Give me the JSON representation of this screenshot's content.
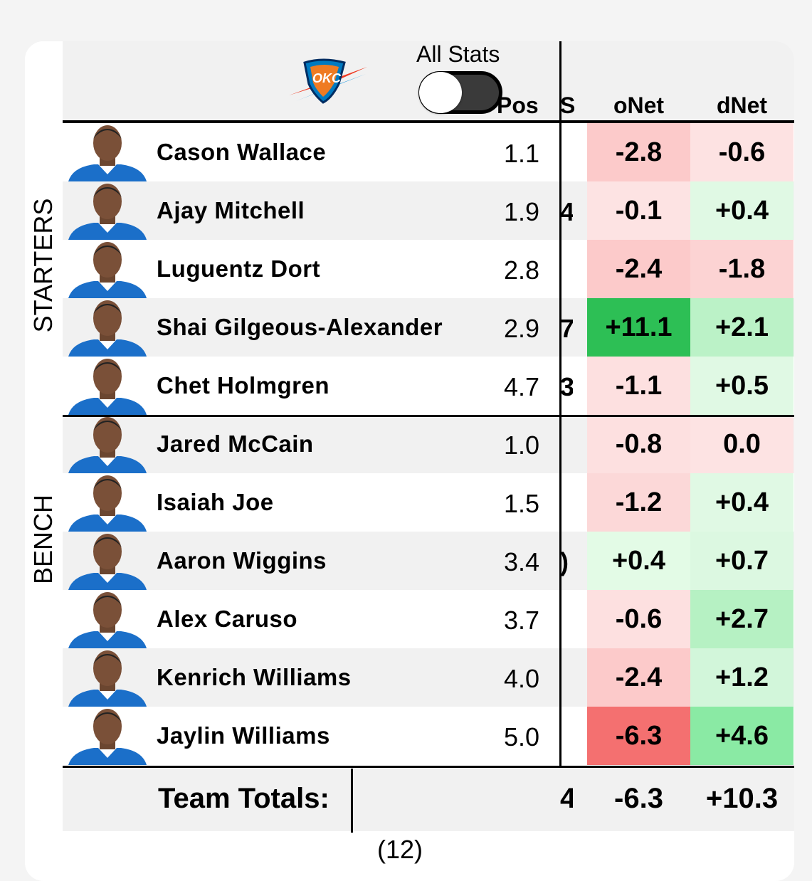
{
  "header": {
    "all_stats_label": "All Stats",
    "toggle_on": false,
    "columns": {
      "pos": "Pos",
      "clipped": "S",
      "onet": "oNet",
      "dnet": "dNet"
    }
  },
  "groups": {
    "starters": "STARTERS",
    "bench": "BENCH"
  },
  "rows": [
    {
      "name": "Cason Wallace",
      "pos": "1.1",
      "frag": "",
      "onet": "-2.8",
      "dnet": "-0.6",
      "onet_color": "#fccaca",
      "dnet_color": "#fde2e2"
    },
    {
      "name": "Ajay Mitchell",
      "pos": "1.9",
      "frag": "4",
      "onet": "-0.1",
      "dnet": "+0.4",
      "onet_color": "#fde3e3",
      "dnet_color": "#e0f9e4"
    },
    {
      "name": "Luguentz Dort",
      "pos": "2.8",
      "frag": "",
      "onet": "-2.4",
      "dnet": "-1.8",
      "onet_color": "#fccaca",
      "dnet_color": "#fcd3d3"
    },
    {
      "name": "Shai Gilgeous-Alexander",
      "pos": "2.9",
      "frag": "7",
      "onet": "+11.1",
      "dnet": "+2.1",
      "onet_color": "#2dbf55",
      "dnet_color": "#bbf2c7"
    },
    {
      "name": "Chet Holmgren",
      "pos": "4.7",
      "frag": "3",
      "onet": "-1.1",
      "dnet": "+0.5",
      "onet_color": "#fde0e0",
      "dnet_color": "#e0f9e4"
    },
    {
      "name": "Jared McCain",
      "pos": "1.0",
      "frag": "",
      "onet": "-0.8",
      "dnet": "0.0",
      "onet_color": "#fde0e0",
      "dnet_color": "#fde3e3"
    },
    {
      "name": "Isaiah Joe",
      "pos": "1.5",
      "frag": "",
      "onet": "-1.2",
      "dnet": "+0.4",
      "onet_color": "#fcd8d8",
      "dnet_color": "#e0f9e4"
    },
    {
      "name": "Aaron Wiggins",
      "pos": "3.4",
      "frag": ")",
      "onet": "+0.4",
      "dnet": "+0.7",
      "onet_color": "#e3fbe6",
      "dnet_color": "#dcf8e1"
    },
    {
      "name": "Alex Caruso",
      "pos": "3.7",
      "frag": "",
      "onet": "-0.6",
      "dnet": "+2.7",
      "onet_color": "#fde0e0",
      "dnet_color": "#b6f1c3"
    },
    {
      "name": "Kenrich Williams",
      "pos": "4.0",
      "frag": "",
      "onet": "-2.4",
      "dnet": "+1.2",
      "onet_color": "#fccaca",
      "dnet_color": "#d2f6da"
    },
    {
      "name": "Jaylin Williams",
      "pos": "5.0",
      "frag": "",
      "onet": "-6.3",
      "dnet": "+4.6",
      "onet_color": "#f47070",
      "dnet_color": "#8aeaa4"
    }
  ],
  "totals": {
    "label": "Team Totals:",
    "frag": "4",
    "onet": "-6.3",
    "dnet": "+10.3"
  },
  "below_text": "(12)"
}
